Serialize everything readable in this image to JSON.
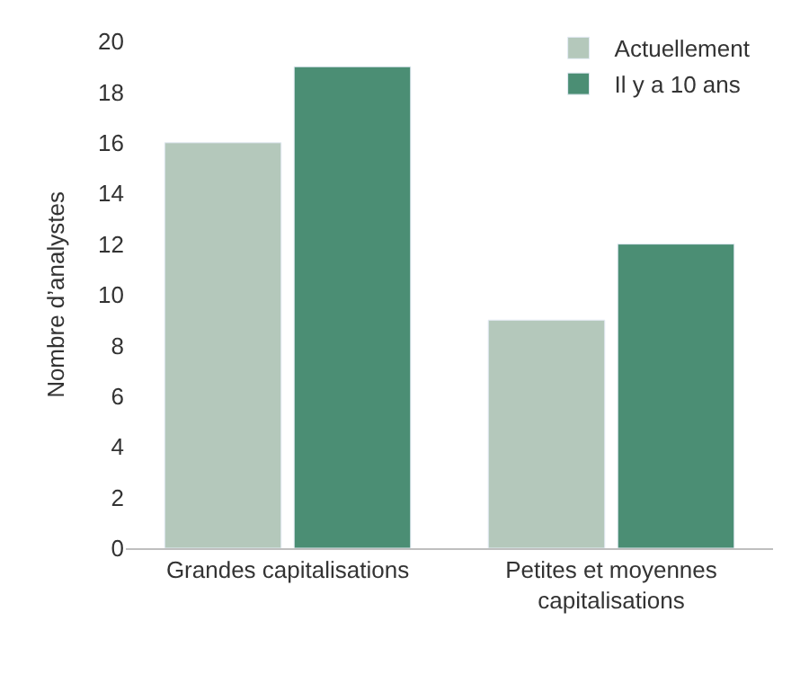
{
  "chart_data": {
    "type": "bar",
    "ylabel": "Nombre d’analystes",
    "categories": [
      "Grandes capitalisations",
      "Petites et moyennes capitalisations"
    ],
    "series": [
      {
        "name": "Actuellement",
        "color": "#b4c8bb",
        "values": [
          16,
          9
        ]
      },
      {
        "name": "Il y a 10 ans",
        "color": "#4b8e74",
        "values": [
          19,
          12
        ]
      }
    ],
    "ylim": [
      0,
      20
    ],
    "yticks": [
      0,
      2,
      4,
      6,
      8,
      10,
      12,
      14,
      16,
      18,
      20
    ],
    "grid": false,
    "legend": "top right"
  }
}
